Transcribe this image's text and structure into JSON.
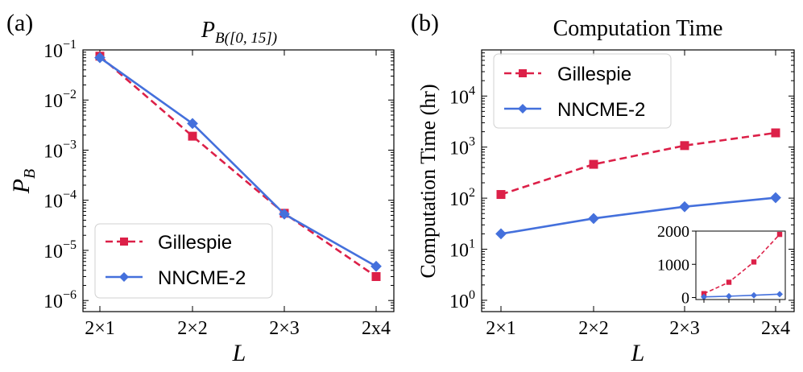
{
  "colors": {
    "gillespie": "#dc2048",
    "nncme": "#4470dc",
    "axis": "#000000"
  },
  "chart_data": [
    {
      "id": "a",
      "type": "line",
      "panel_label": "(a)",
      "title_main": "P",
      "title_sub": "B([0, 15])",
      "xlabel": "L",
      "ylabel_main": "P",
      "ylabel_sub": "B",
      "yscale": "log",
      "ylim": [
        6e-07,
        0.1
      ],
      "categories": [
        "2×1",
        "2×2",
        "2×3",
        "2x4"
      ],
      "ytick_labels": [
        {
          "exp": -6,
          "base": "10",
          "power": "−6"
        },
        {
          "exp": -5,
          "base": "10",
          "power": "−5"
        },
        {
          "exp": -4,
          "base": "10",
          "power": "−4"
        },
        {
          "exp": -3,
          "base": "10",
          "power": "−3"
        },
        {
          "exp": -2,
          "base": "10",
          "power": "−2"
        },
        {
          "exp": -1,
          "base": "10",
          "power": "−1"
        }
      ],
      "series": [
        {
          "name": "Gillespie",
          "key": "gillespie",
          "style": "dashed",
          "marker": "square",
          "values": [
            0.075,
            0.0019,
            5.5e-05,
            3e-06
          ]
        },
        {
          "name": "NNCME-2",
          "key": "nncme",
          "style": "solid",
          "marker": "diamond",
          "values": [
            0.07,
            0.0034,
            5.3e-05,
            4.8e-06
          ]
        }
      ],
      "legend": "lower-left"
    },
    {
      "id": "b",
      "type": "line",
      "panel_label": "(b)",
      "title": "Computation Time",
      "xlabel": "L",
      "ylabel": "Computation Time (hr)",
      "yscale": "log",
      "ylim": [
        0.6,
        80000
      ],
      "categories": [
        "2×1",
        "2×2",
        "2×3",
        "2x4"
      ],
      "ytick_labels": [
        {
          "exp": 0,
          "base": "10",
          "power": "0"
        },
        {
          "exp": 1,
          "base": "10",
          "power": "1"
        },
        {
          "exp": 2,
          "base": "10",
          "power": "2"
        },
        {
          "exp": 3,
          "base": "10",
          "power": "3"
        },
        {
          "exp": 4,
          "base": "10",
          "power": "4"
        }
      ],
      "series": [
        {
          "name": "Gillespie",
          "key": "gillespie",
          "style": "dashed",
          "marker": "square",
          "values": [
            118,
            460,
            1070,
            1900
          ]
        },
        {
          "name": "NNCME-2",
          "key": "nncme",
          "style": "solid",
          "marker": "diamond",
          "values": [
            20,
            40,
            68,
            102
          ]
        }
      ],
      "legend": "upper-left",
      "inset": {
        "yscale": "linear",
        "ylim": [
          -60,
          2000
        ],
        "yticks": [
          0,
          1000,
          2000
        ],
        "ytick_labels": [
          "0",
          "1000",
          "2000"
        ]
      }
    }
  ]
}
